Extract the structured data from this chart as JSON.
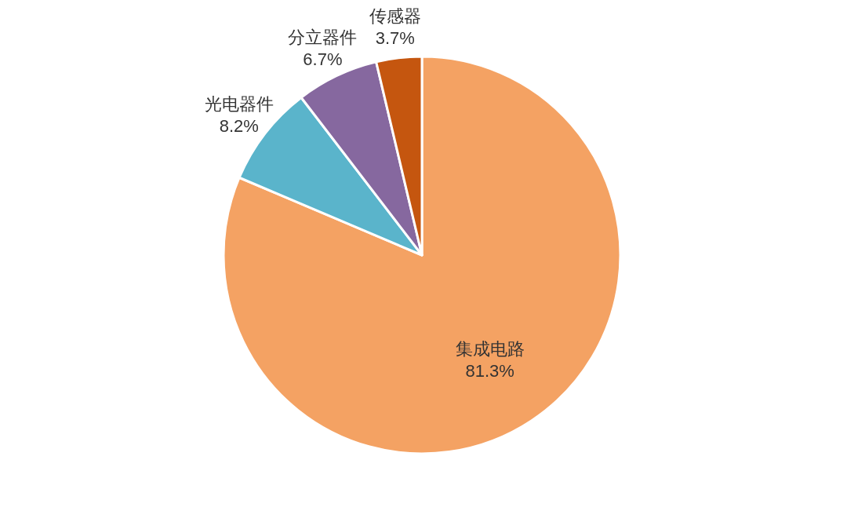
{
  "chart_data": {
    "type": "pie",
    "categories": [
      "集成电路",
      "光电器件",
      "分立器件",
      "传感器"
    ],
    "values": [
      81.3,
      8.2,
      6.7,
      3.7
    ],
    "colors": [
      "#f4a263",
      "#5ab4cb",
      "#86689f",
      "#c5560f"
    ],
    "value_labels": [
      "81.3%",
      "8.2%",
      "6.7%",
      "3.7%"
    ]
  }
}
